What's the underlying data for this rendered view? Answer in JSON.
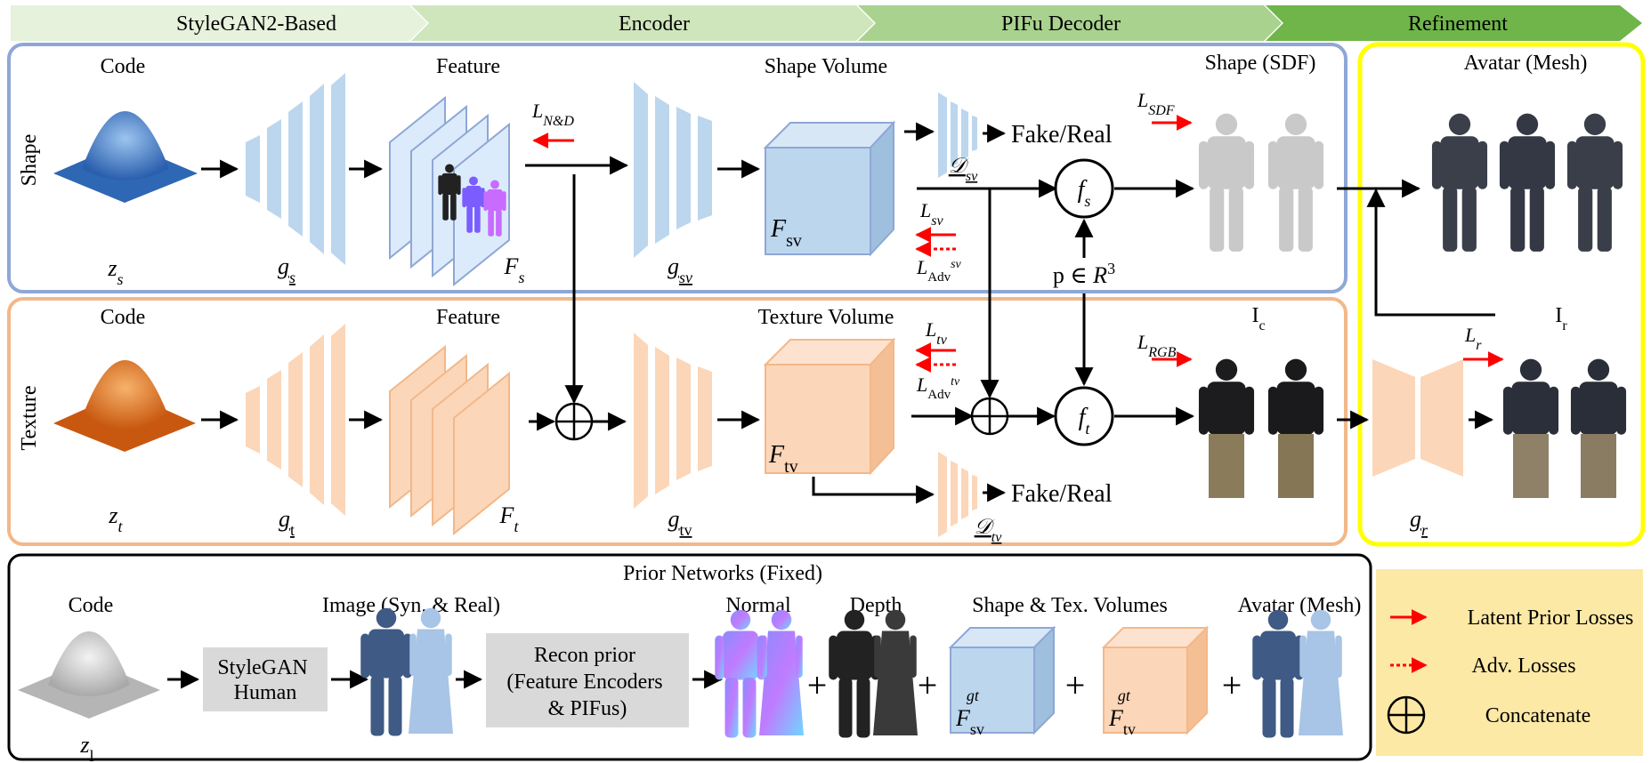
{
  "stages": {
    "styleganBased": "StyleGAN2-Based",
    "encoder": "Encoder",
    "pifuDecoder": "PIFu Decoder",
    "refinement": "Refinement"
  },
  "shape": {
    "rowLabel": "Shape",
    "code": "Code",
    "codeVar": "zs",
    "generator": "gs",
    "feature": "Feature",
    "featureVar": "Fs",
    "lossND": "LN&D",
    "encoder": "gsv",
    "volumeTitle": "Shape Volume",
    "volumeVar": "Fsv",
    "discriminator": "Dsv",
    "fakeReal": "Fake/Real",
    "lossSv": "Lsv",
    "lossAdvSv": "LAdvsv",
    "decoder": "fs",
    "point": "p ∈ R3",
    "outputTitle": "Shape (SDF)",
    "lossSDF": "LSDF"
  },
  "texture": {
    "rowLabel": "Texture",
    "code": "Code",
    "codeVar": "zt",
    "generator": "gt",
    "feature": "Feature",
    "featureVar": "Ft",
    "encoder": "gtv",
    "volumeTitle": "Texture Volume",
    "volumeVar": "Ftv",
    "lossTv": "Ltv",
    "lossAdvTv": "LAdvtv",
    "discriminator": "Dtv",
    "fakeReal": "Fake/Real",
    "decoder": "ft",
    "coarse": "Ic",
    "lossRGB": "LRGB"
  },
  "refinement": {
    "title": "Avatar (Mesh)",
    "refined": "Ir",
    "lossR": "Lr",
    "network": "gr"
  },
  "prior": {
    "title": "Prior Networks (Fixed)",
    "code": "Code",
    "codeVar": "zl",
    "styleganBox": [
      "StyleGAN",
      "Human"
    ],
    "images": "Image (Syn. & Real)",
    "reconBox": [
      "Recon prior",
      "(Feature Encoders",
      "& PIFus)"
    ],
    "normal": "Normal",
    "depth": "Depth",
    "volumes": "Shape & Tex. Volumes",
    "svGt": "Fsvgt",
    "tvGt": "Ftvgt",
    "avatar": "Avatar (Mesh)",
    "plus": "+"
  },
  "legend": {
    "latent": "Latent Prior Losses",
    "adv": "Adv. Losses",
    "concat": "Concatenate"
  },
  "colors": {
    "shapeBorder": "#8ea7d6",
    "textureBorder": "#f2b88a",
    "refineBorder": "#ffff00",
    "shapeFill": "#bcd6ee",
    "textureFill": "#fcd6b8",
    "lossRed": "#ff0000",
    "legendBg": "#fde9a6",
    "priorGray": "#d9d9d9"
  },
  "icons": [
    "gaussian-surface-icon",
    "human-figure-icon",
    "cube-icon",
    "concat-circle-icon",
    "arrow-icon"
  ]
}
